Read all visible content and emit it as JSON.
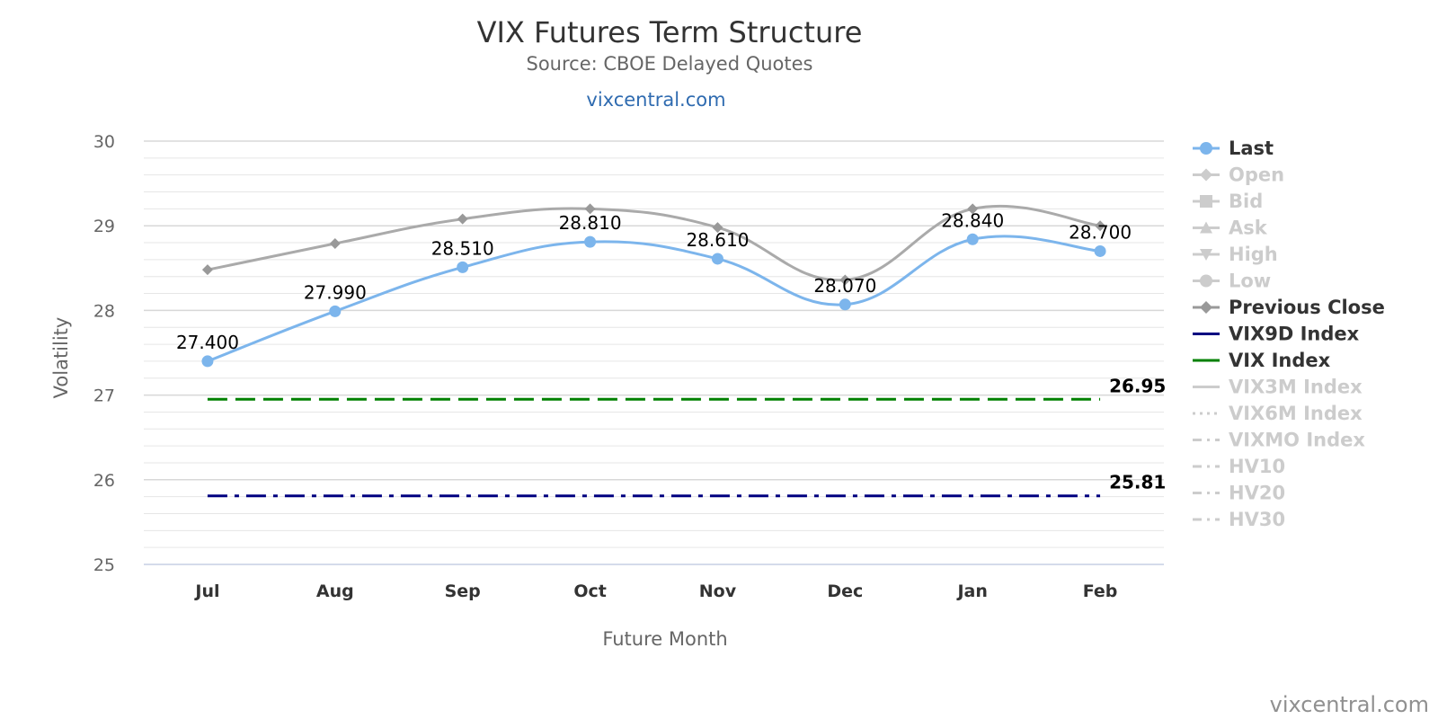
{
  "chart_data": {
    "type": "line",
    "title": "VIX Futures Term Structure",
    "subtitle": "Source: CBOE Delayed Quotes",
    "link_text": "vixcentral.com",
    "credit": "vixcentral.com",
    "xlabel": "Future Month",
    "ylabel": "Volatility",
    "categories": [
      "Jul",
      "Aug",
      "Sep",
      "Oct",
      "Nov",
      "Dec",
      "Jan",
      "Feb"
    ],
    "ylim": [
      25,
      30
    ],
    "yticks": [
      "25",
      "26",
      "27",
      "28",
      "29",
      "30"
    ],
    "series": [
      {
        "name": "Last",
        "values": [
          27.4,
          27.99,
          28.51,
          28.81,
          28.61,
          28.07,
          28.84,
          28.7
        ],
        "labels": [
          "27.400",
          "27.990",
          "28.510",
          "28.810",
          "28.610",
          "28.070",
          "28.840",
          "28.700"
        ]
      },
      {
        "name": "Previous Close",
        "values": [
          28.48,
          28.79,
          29.08,
          29.2,
          28.98,
          28.36,
          29.2,
          29.0
        ]
      },
      {
        "name": "VIX9D Index",
        "value": 25.81,
        "label": "25.81"
      },
      {
        "name": "VIX Index",
        "value": 26.95,
        "label": "26.95"
      }
    ],
    "legend": {
      "position": "right",
      "items": [
        {
          "name": "Last",
          "active": true,
          "color": "#7cb5ec",
          "marker": "circle",
          "line": "solid"
        },
        {
          "name": "Open",
          "active": false,
          "color": "#cccccc",
          "marker": "diamond",
          "line": "solid"
        },
        {
          "name": "Bid",
          "active": false,
          "color": "#cccccc",
          "marker": "square",
          "line": "solid"
        },
        {
          "name": "Ask",
          "active": false,
          "color": "#cccccc",
          "marker": "triangle",
          "line": "solid"
        },
        {
          "name": "High",
          "active": false,
          "color": "#cccccc",
          "marker": "triangle-down",
          "line": "solid"
        },
        {
          "name": "Low",
          "active": false,
          "color": "#cccccc",
          "marker": "circle",
          "line": "solid"
        },
        {
          "name": "Previous Close",
          "active": true,
          "color": "#999999",
          "marker": "diamond",
          "line": "solid"
        },
        {
          "name": "VIX9D Index",
          "active": true,
          "color": "#000080",
          "marker": "none",
          "line": "solid"
        },
        {
          "name": "VIX Index",
          "active": true,
          "color": "#008000",
          "marker": "none",
          "line": "solid"
        },
        {
          "name": "VIX3M Index",
          "active": false,
          "color": "#cccccc",
          "marker": "none",
          "line": "solid"
        },
        {
          "name": "VIX6M Index",
          "active": false,
          "color": "#cccccc",
          "marker": "none",
          "line": "dot"
        },
        {
          "name": "VIXMO Index",
          "active": false,
          "color": "#cccccc",
          "marker": "none",
          "line": "dashdot"
        },
        {
          "name": "HV10",
          "active": false,
          "color": "#cccccc",
          "marker": "none",
          "line": "dashdot"
        },
        {
          "name": "HV20",
          "active": false,
          "color": "#cccccc",
          "marker": "none",
          "line": "dashdot"
        },
        {
          "name": "HV30",
          "active": false,
          "color": "#cccccc",
          "marker": "none",
          "line": "dashdot"
        }
      ]
    },
    "colors": {
      "last": "#7cb5ec",
      "previous_close": "#aaaaaa",
      "previous_close_marker": "#999999",
      "vix9d": "#000080",
      "vix": "#008000",
      "grid": "#e6e6e6",
      "grid_major": "#d8d8d8"
    }
  }
}
